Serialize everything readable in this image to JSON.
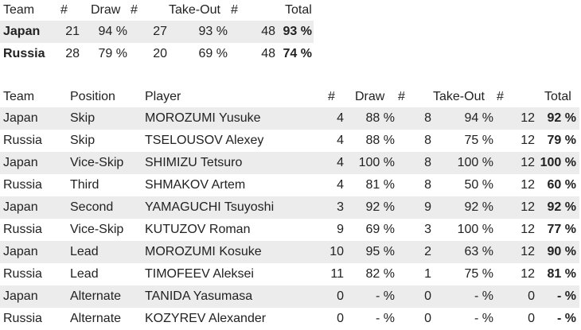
{
  "summary": {
    "headers": {
      "team": "Team",
      "n1": "#",
      "draw": "Draw",
      "n2": "#",
      "takeout": "Take-Out",
      "n3": "#",
      "total": "Total"
    },
    "rows": [
      {
        "team": "Japan",
        "n1": "21",
        "draw": "94 %",
        "n2": "27",
        "takeout": "93 %",
        "n3": "48",
        "total": "93 %"
      },
      {
        "team": "Russia",
        "n1": "28",
        "draw": "79 %",
        "n2": "20",
        "takeout": "69 %",
        "n3": "48",
        "total": "74 %"
      }
    ]
  },
  "players": {
    "headers": {
      "team": "Team",
      "position": "Position",
      "player": "Player",
      "n1": "#",
      "draw": "Draw",
      "n2": "#",
      "takeout": "Take-Out",
      "n3": "#",
      "total": "Total"
    },
    "rows": [
      {
        "team": "Japan",
        "position": "Skip",
        "player": "MOROZUMI Yusuke",
        "n1": "4",
        "draw": "88 %",
        "n2": "8",
        "takeout": "94 %",
        "n3": "12",
        "total": "92 %"
      },
      {
        "team": "Russia",
        "position": "Skip",
        "player": "TSELOUSOV Alexey",
        "n1": "4",
        "draw": "88 %",
        "n2": "8",
        "takeout": "75 %",
        "n3": "12",
        "total": "79 %"
      },
      {
        "team": "Japan",
        "position": "Vice-Skip",
        "player": "SHIMIZU Tetsuro",
        "n1": "4",
        "draw": "100 %",
        "n2": "8",
        "takeout": "100 %",
        "n3": "12",
        "total": "100 %"
      },
      {
        "team": "Russia",
        "position": "Third",
        "player": "SHMAKOV Artem",
        "n1": "4",
        "draw": "81 %",
        "n2": "8",
        "takeout": "50 %",
        "n3": "12",
        "total": "60 %"
      },
      {
        "team": "Japan",
        "position": "Second",
        "player": "YAMAGUCHI Tsuyoshi",
        "n1": "3",
        "draw": "92 %",
        "n2": "9",
        "takeout": "92 %",
        "n3": "12",
        "total": "92 %"
      },
      {
        "team": "Russia",
        "position": "Vice-Skip",
        "player": "KUTUZOV Roman",
        "n1": "9",
        "draw": "69 %",
        "n2": "3",
        "takeout": "100 %",
        "n3": "12",
        "total": "77 %"
      },
      {
        "team": "Japan",
        "position": "Lead",
        "player": "MOROZUMI Kosuke",
        "n1": "10",
        "draw": "95 %",
        "n2": "2",
        "takeout": "63 %",
        "n3": "12",
        "total": "90 %"
      },
      {
        "team": "Russia",
        "position": "Lead",
        "player": "TIMOFEEV Aleksei",
        "n1": "11",
        "draw": "82 %",
        "n2": "1",
        "takeout": "75 %",
        "n3": "12",
        "total": "81 %"
      },
      {
        "team": "Japan",
        "position": "Alternate",
        "player": "TANIDA Yasumasa",
        "n1": "0",
        "draw": "- %",
        "n2": "0",
        "takeout": "- %",
        "n3": "0",
        "total": "- %"
      },
      {
        "team": "Russia",
        "position": "Alternate",
        "player": "KOZYREV Alexander",
        "n1": "0",
        "draw": "- %",
        "n2": "0",
        "takeout": "- %",
        "n3": "0",
        "total": "- %"
      }
    ]
  }
}
